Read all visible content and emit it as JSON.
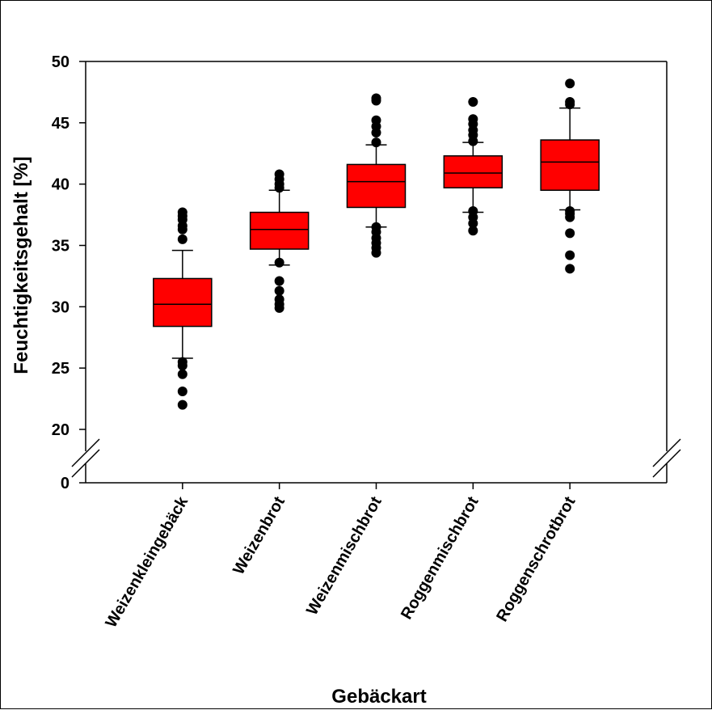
{
  "chart_data": {
    "type": "box",
    "title": "",
    "xlabel": "Gebäckart",
    "ylabel": "Feuchtigkeitsgehalt [%]",
    "ylim": [
      0,
      50
    ],
    "y_axis_break": [
      0,
      20
    ],
    "yticks": [
      0,
      20,
      25,
      30,
      35,
      40,
      45,
      50
    ],
    "yticks_labels": [
      "0",
      "20",
      "25",
      "30",
      "35",
      "40",
      "45",
      "50"
    ],
    "grid": false,
    "box_color": "#ff0000",
    "categories": [
      "Weizenkleingebäck",
      "Weizenbrot",
      "Weizenmischbrot",
      "Roggenmischbrot",
      "Roggenschrotbrot"
    ],
    "boxes": [
      {
        "category": "Weizenkleingebäck",
        "whisker_low": 25.8,
        "q1": 28.4,
        "median": 30.2,
        "q3": 32.3,
        "whisker_high": 34.6,
        "outliers": [
          37.7,
          37.4,
          37.1,
          36.6,
          36.3,
          35.5,
          25.5,
          25.2,
          24.5,
          23.1,
          22.0
        ]
      },
      {
        "category": "Weizenbrot",
        "whisker_low": 33.4,
        "q1": 34.7,
        "median": 36.3,
        "q3": 37.7,
        "whisker_high": 39.5,
        "outliers": [
          40.8,
          40.4,
          40.0,
          39.7,
          33.6,
          32.1,
          31.3,
          30.6,
          30.2,
          29.9
        ]
      },
      {
        "category": "Weizenmischbrot",
        "whisker_low": 36.5,
        "q1": 38.1,
        "median": 40.2,
        "q3": 41.6,
        "whisker_high": 43.2,
        "outliers": [
          47.0,
          46.8,
          45.2,
          44.7,
          44.2,
          43.4,
          36.5,
          36.1,
          35.6,
          35.2,
          34.8,
          34.4
        ]
      },
      {
        "category": "Roggenmischbrot",
        "whisker_low": 37.7,
        "q1": 39.7,
        "median": 40.9,
        "q3": 42.3,
        "whisker_high": 43.4,
        "outliers": [
          46.7,
          45.3,
          44.9,
          44.4,
          44.0,
          43.5,
          37.8,
          37.3,
          36.8,
          36.2
        ]
      },
      {
        "category": "Roggenschrotbrot",
        "whisker_low": 37.9,
        "q1": 39.5,
        "median": 41.8,
        "q3": 43.6,
        "whisker_high": 46.2,
        "outliers": [
          48.2,
          46.7,
          46.5,
          37.8,
          37.6,
          37.3,
          36.0,
          34.2,
          33.1
        ]
      }
    ]
  }
}
